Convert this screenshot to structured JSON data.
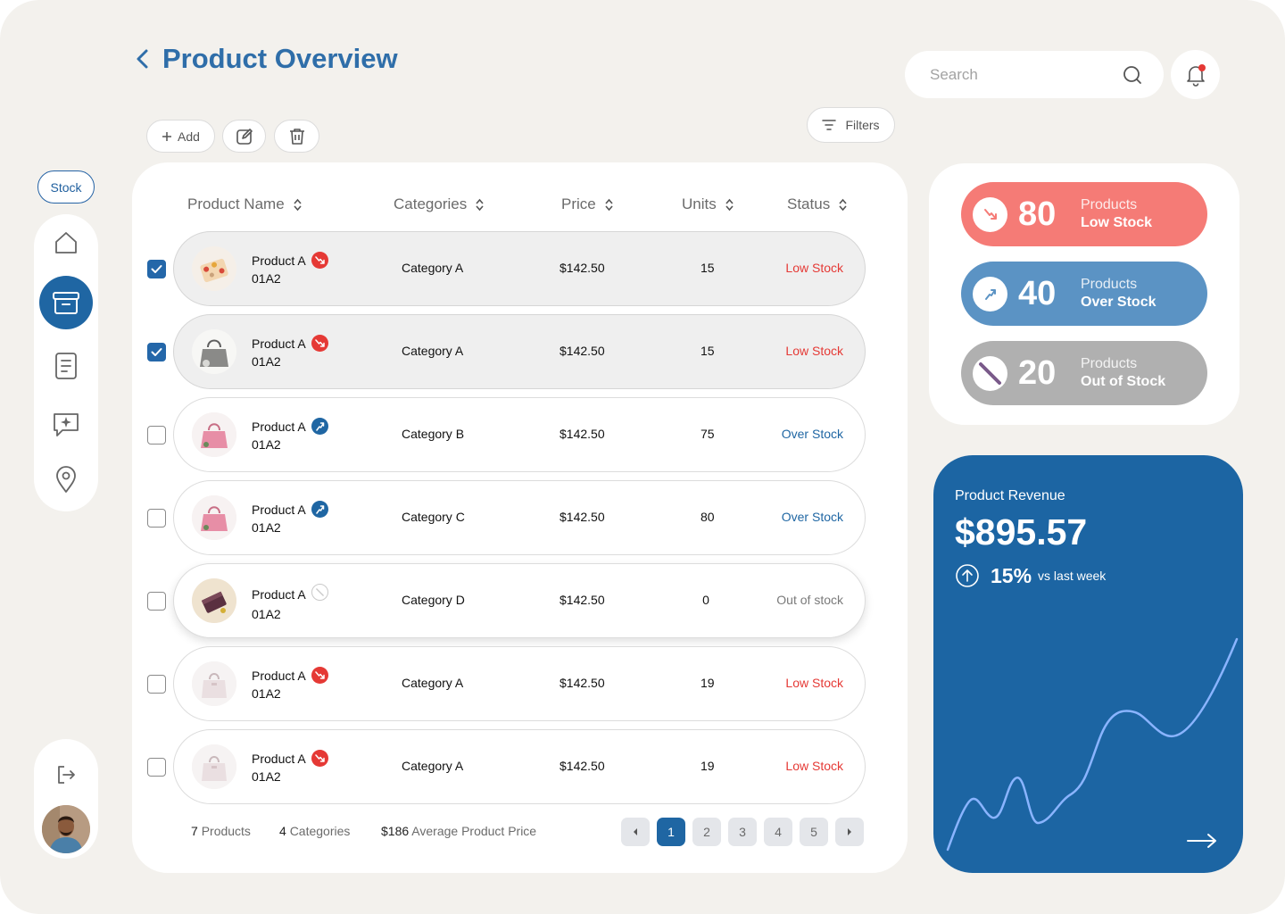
{
  "header": {
    "title": "Product Overview",
    "search_placeholder": "Search"
  },
  "toolbar": {
    "add_label": "Add",
    "filters_label": "Filters"
  },
  "sidebar": {
    "section_label": "Stock",
    "items": [
      "home",
      "inventory",
      "document",
      "messages",
      "location"
    ],
    "active": "inventory"
  },
  "table": {
    "columns": [
      "Product Name",
      "Categories",
      "Price",
      "Units",
      "Status"
    ],
    "rows": [
      {
        "name": "Product A",
        "code": "01A2",
        "category": "Category A",
        "price": "$142.50",
        "units": "15",
        "status": "Low Stock",
        "checked": true,
        "badge": "trend-down-icon"
      },
      {
        "name": "Product A",
        "code": "01A2",
        "category": "Category A",
        "price": "$142.50",
        "units": "15",
        "status": "Low Stock",
        "checked": true,
        "badge": "trend-down-icon"
      },
      {
        "name": "Product A",
        "code": "01A2",
        "category": "Category B",
        "price": "$142.50",
        "units": "75",
        "status": "Over Stock",
        "checked": false,
        "badge": "trend-up-icon"
      },
      {
        "name": "Product A",
        "code": "01A2",
        "category": "Category C",
        "price": "$142.50",
        "units": "80",
        "status": "Over Stock",
        "checked": false,
        "badge": "trend-up-icon"
      },
      {
        "name": "Product A",
        "code": "01A2",
        "category": "Category D",
        "price": "$142.50",
        "units": "0",
        "status": "Out of stock",
        "checked": false,
        "badge": "no-stock-icon"
      },
      {
        "name": "Product A",
        "code": "01A2",
        "category": "Category A",
        "price": "$142.50",
        "units": "19",
        "status": "Low Stock",
        "checked": false,
        "badge": "trend-down-icon"
      },
      {
        "name": "Product A",
        "code": "01A2",
        "category": "Category A",
        "price": "$142.50",
        "units": "19",
        "status": "Low Stock",
        "checked": false,
        "badge": "trend-down-icon"
      }
    ]
  },
  "summary": {
    "products_count": "7",
    "products_label": "Products",
    "categories_count": "4",
    "categories_label": "Categories",
    "avg_price": "$186",
    "avg_price_label": "Average Product Price"
  },
  "pagination": {
    "pages": [
      "1",
      "2",
      "3",
      "4",
      "5"
    ],
    "current": "1"
  },
  "stats": [
    {
      "value": "80",
      "line1": "Products",
      "line2": "Low Stock",
      "color": "#f57b76"
    },
    {
      "value": "40",
      "line1": "Products",
      "line2": "Over Stock",
      "color": "#5b93c4"
    },
    {
      "value": "20",
      "line1": "Products",
      "line2": "Out of Stock",
      "color": "#b0b0b0"
    }
  ],
  "revenue": {
    "title": "Product Revenue",
    "amount": "$895.57",
    "change": "15%",
    "change_label": "vs last week"
  },
  "colors": {
    "accent": "#1f66a3",
    "low_stock": "#e53935",
    "over_stock": "#1f66a3",
    "out_of_stock": "#7a7a7a"
  }
}
